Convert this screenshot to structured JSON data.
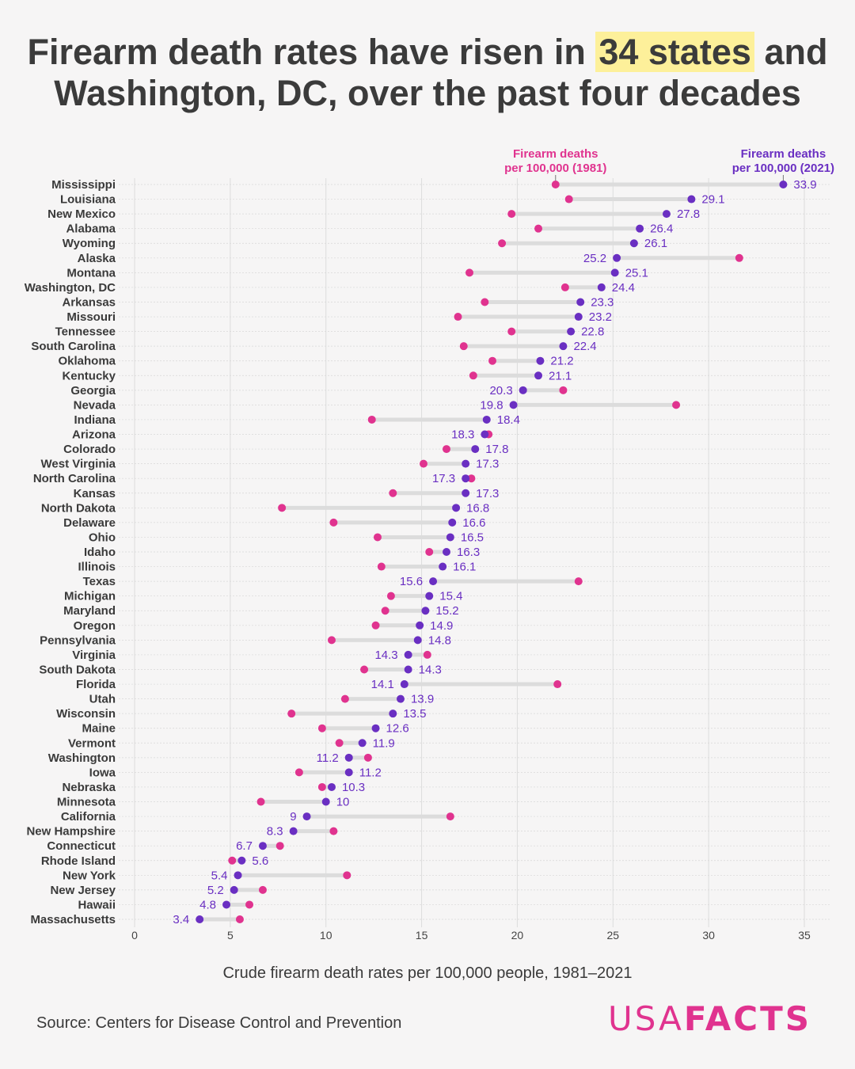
{
  "title": {
    "before": "Firearm death rates have risen in ",
    "highlight": "34 states",
    "after": " and",
    "line2": "Washington, DC, over the past four decades"
  },
  "colors": {
    "y1981": "#e0338f",
    "y2021": "#6a2fc2",
    "highlight": "#fdf09a"
  },
  "source": "Source: Centers for Disease Control and Prevention",
  "logo": {
    "part1": "USA",
    "part2": "FACTS"
  },
  "chart_data": {
    "type": "dumbbell",
    "xlabel": "Crude firearm death rates per 100,000 people, 1981–2021",
    "xlim": [
      0,
      35
    ],
    "xticks": [
      0,
      5,
      10,
      15,
      20,
      25,
      30,
      35
    ],
    "grid": true,
    "series_labels": {
      "y1981": "Firearm deaths per 100,000 (1981)",
      "y2021": "Firearm deaths per 100,000 (2021)"
    },
    "series_label_lines": {
      "y1981": [
        "Firearm deaths",
        "per 100,000 (1981)"
      ],
      "y2021": [
        "Firearm deaths",
        "per 100,000 (2021)"
      ]
    },
    "rows": [
      {
        "state": "Mississippi",
        "y1981": 22.0,
        "y2021": 33.9
      },
      {
        "state": "Louisiana",
        "y1981": 22.7,
        "y2021": 29.1
      },
      {
        "state": "New Mexico",
        "y1981": 19.7,
        "y2021": 27.8
      },
      {
        "state": "Alabama",
        "y1981": 21.1,
        "y2021": 26.4
      },
      {
        "state": "Wyoming",
        "y1981": 19.2,
        "y2021": 26.1
      },
      {
        "state": "Alaska",
        "y1981": 31.6,
        "y2021": 25.2
      },
      {
        "state": "Montana",
        "y1981": 17.5,
        "y2021": 25.1
      },
      {
        "state": "Washington, DC",
        "y1981": 22.5,
        "y2021": 24.4
      },
      {
        "state": "Arkansas",
        "y1981": 18.3,
        "y2021": 23.3
      },
      {
        "state": "Missouri",
        "y1981": 16.9,
        "y2021": 23.2
      },
      {
        "state": "Tennessee",
        "y1981": 19.7,
        "y2021": 22.8
      },
      {
        "state": "South Carolina",
        "y1981": 17.2,
        "y2021": 22.4
      },
      {
        "state": "Oklahoma",
        "y1981": 18.7,
        "y2021": 21.2
      },
      {
        "state": "Kentucky",
        "y1981": 17.7,
        "y2021": 21.1
      },
      {
        "state": "Georgia",
        "y1981": 22.4,
        "y2021": 20.3
      },
      {
        "state": "Nevada",
        "y1981": 28.3,
        "y2021": 19.8
      },
      {
        "state": "Indiana",
        "y1981": 12.4,
        "y2021": 18.4
      },
      {
        "state": "Arizona",
        "y1981": 18.5,
        "y2021": 18.3
      },
      {
        "state": "Colorado",
        "y1981": 16.3,
        "y2021": 17.8
      },
      {
        "state": "West Virginia",
        "y1981": 15.1,
        "y2021": 17.3
      },
      {
        "state": "North Carolina",
        "y1981": 17.6,
        "y2021": 17.3
      },
      {
        "state": "Kansas",
        "y1981": 13.5,
        "y2021": 17.3
      },
      {
        "state": "North Dakota",
        "y1981": 7.7,
        "y2021": 16.8
      },
      {
        "state": "Delaware",
        "y1981": 10.4,
        "y2021": 16.6
      },
      {
        "state": "Ohio",
        "y1981": 12.7,
        "y2021": 16.5
      },
      {
        "state": "Idaho",
        "y1981": 15.4,
        "y2021": 16.3
      },
      {
        "state": "Illinois",
        "y1981": 12.9,
        "y2021": 16.1
      },
      {
        "state": "Texas",
        "y1981": 23.2,
        "y2021": 15.6
      },
      {
        "state": "Michigan",
        "y1981": 13.4,
        "y2021": 15.4
      },
      {
        "state": "Maryland",
        "y1981": 13.1,
        "y2021": 15.2
      },
      {
        "state": "Oregon",
        "y1981": 12.6,
        "y2021": 14.9
      },
      {
        "state": "Pennsylvania",
        "y1981": 10.3,
        "y2021": 14.8
      },
      {
        "state": "Virginia",
        "y1981": 15.3,
        "y2021": 14.3
      },
      {
        "state": "South Dakota",
        "y1981": 12.0,
        "y2021": 14.3
      },
      {
        "state": "Florida",
        "y1981": 22.1,
        "y2021": 14.1
      },
      {
        "state": "Utah",
        "y1981": 11.0,
        "y2021": 13.9
      },
      {
        "state": "Wisconsin",
        "y1981": 8.2,
        "y2021": 13.5
      },
      {
        "state": "Maine",
        "y1981": 9.8,
        "y2021": 12.6
      },
      {
        "state": "Vermont",
        "y1981": 10.7,
        "y2021": 11.9
      },
      {
        "state": "Washington",
        "y1981": 12.2,
        "y2021": 11.2
      },
      {
        "state": "Iowa",
        "y1981": 8.6,
        "y2021": 11.2
      },
      {
        "state": "Nebraska",
        "y1981": 9.8,
        "y2021": 10.3
      },
      {
        "state": "Minnesota",
        "y1981": 6.6,
        "y2021": 10
      },
      {
        "state": "California",
        "y1981": 16.5,
        "y2021": 9
      },
      {
        "state": "New Hampshire",
        "y1981": 10.4,
        "y2021": 8.3
      },
      {
        "state": "Connecticut",
        "y1981": 7.6,
        "y2021": 6.7
      },
      {
        "state": "Rhode Island",
        "y1981": 5.1,
        "y2021": 5.6
      },
      {
        "state": "New York",
        "y1981": 11.1,
        "y2021": 5.4
      },
      {
        "state": "New Jersey",
        "y1981": 6.7,
        "y2021": 5.2
      },
      {
        "state": "Hawaii",
        "y1981": 6.0,
        "y2021": 4.8
      },
      {
        "state": "Massachusetts",
        "y1981": 5.5,
        "y2021": 3.4
      }
    ]
  }
}
